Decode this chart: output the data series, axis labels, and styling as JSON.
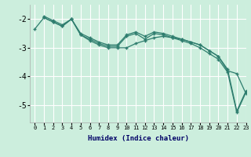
{
  "xlabel": "Humidex (Indice chaleur)",
  "ylabel": "",
  "background_color": "#cceedd",
  "grid_color": "#ffffff",
  "line_color": "#2e7d6e",
  "xlim": [
    -0.5,
    23
  ],
  "ylim": [
    -5.6,
    -1.5
  ],
  "xticks": [
    0,
    1,
    2,
    3,
    4,
    5,
    6,
    7,
    8,
    9,
    10,
    11,
    12,
    13,
    14,
    15,
    16,
    17,
    18,
    19,
    20,
    21,
    22,
    23
  ],
  "yticks": [
    -5,
    -4,
    -3,
    -2
  ],
  "series": [
    [
      -2.35,
      -1.95,
      -2.1,
      -2.25,
      -2.0,
      -2.55,
      -2.7,
      -2.85,
      -2.95,
      -2.95,
      -2.6,
      -2.5,
      -2.7,
      -2.5,
      -2.55,
      -2.65,
      -2.75,
      -2.85,
      -3.0,
      -3.2,
      -3.4,
      -3.85,
      -5.25,
      -4.55
    ],
    [
      null,
      -1.9,
      -2.05,
      -2.2,
      -2.0,
      -2.5,
      -2.65,
      -2.8,
      -2.9,
      -2.9,
      -2.55,
      -2.45,
      -2.6,
      -2.45,
      -2.5,
      -2.6,
      -2.7,
      -2.8,
      -2.9,
      -3.1,
      -3.3,
      -3.75,
      -5.2,
      -4.5
    ],
    [
      null,
      -1.95,
      -2.1,
      -2.25,
      -2.0,
      -2.55,
      -2.75,
      -2.9,
      -3.0,
      -3.0,
      -3.0,
      -2.85,
      -2.75,
      -2.65,
      -2.6,
      -2.65,
      -2.7,
      -2.8,
      -2.9,
      -3.1,
      -3.3,
      -3.8,
      -3.9,
      -4.6
    ]
  ]
}
